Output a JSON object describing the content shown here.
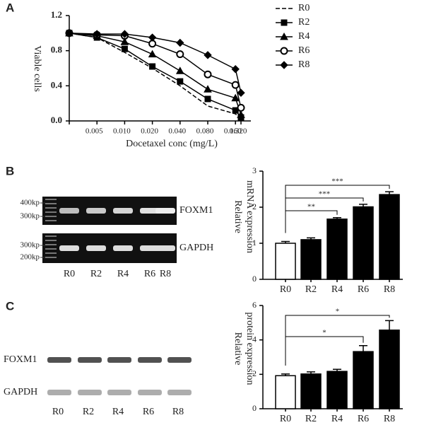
{
  "panel_labels": [
    "A",
    "B",
    "C"
  ],
  "chart_data": [
    {
      "type": "line",
      "xlabel": "Docetaxel conc (mg/L)",
      "ylabel": "Viable cells",
      "categories": [
        null,
        "0.005",
        "0.010",
        "0.020",
        "0.040",
        "0.080",
        "0.160",
        "0.320"
      ],
      "ylim": [
        0,
        1.2
      ],
      "yticks": [
        {
          "value": 0,
          "label": "0.0"
        },
        0.4,
        0.8,
        1.2
      ],
      "series": [
        {
          "name": "R0",
          "color": "#000000",
          "marker": "none",
          "dash": true,
          "values": [
            1.0,
            0.95,
            0.78,
            0.6,
            0.4,
            0.17,
            0.08,
            0.02
          ]
        },
        {
          "name": "R2",
          "color": "#000000",
          "marker": "square",
          "values": [
            1.0,
            0.95,
            0.82,
            0.62,
            0.45,
            0.25,
            0.12,
            0.04
          ]
        },
        {
          "name": "R4",
          "color": "#000000",
          "marker": "triangle",
          "values": [
            1.0,
            0.97,
            0.9,
            0.76,
            0.57,
            0.36,
            0.26,
            0.07
          ]
        },
        {
          "name": "R6",
          "color": "#000000",
          "marker": "circle-open",
          "values": [
            1.0,
            0.98,
            0.97,
            0.88,
            0.76,
            0.53,
            0.41,
            0.15
          ]
        },
        {
          "name": "R8",
          "color": "#000000",
          "marker": "diamond",
          "values": [
            1.0,
            0.99,
            0.99,
            0.95,
            0.89,
            0.75,
            0.59,
            0.32
          ]
        }
      ]
    },
    {
      "type": "bar",
      "ylabel": [
        "Relative",
        "mRNA expression"
      ],
      "categories": [
        "R0",
        "R2",
        "R4",
        "R6",
        "R8"
      ],
      "values": [
        1.0,
        1.1,
        1.67,
        2.01,
        2.35
      ],
      "errors": [
        0.05,
        0.05,
        0.04,
        0.07,
        0.08
      ],
      "colors": [
        "#ffffff",
        "#000000",
        "#000000",
        "#000000",
        "#000000"
      ],
      "ylim": [
        0,
        3
      ],
      "yticks": [
        0,
        1,
        2,
        3
      ],
      "annotations": [
        {
          "from": "R0",
          "to": "R4",
          "text": "**"
        },
        {
          "from": "R0",
          "to": "R6",
          "text": "***"
        },
        {
          "from": "R0",
          "to": "R8",
          "text": "***"
        }
      ]
    },
    {
      "type": "bar",
      "ylabel": [
        "Relative",
        "protein expression"
      ],
      "categories": [
        "R0",
        "R2",
        "R4",
        "R6",
        "R8"
      ],
      "values": [
        1.92,
        2.02,
        2.17,
        3.32,
        4.57
      ],
      "errors": [
        0.1,
        0.12,
        0.12,
        0.35,
        0.55
      ],
      "colors": [
        "#ffffff",
        "#000000",
        "#000000",
        "#000000",
        "#000000"
      ],
      "ylim": [
        0,
        6
      ],
      "yticks": [
        0,
        2,
        4,
        6
      ],
      "annotations": [
        {
          "from": "R0",
          "to": "R6",
          "text": "*"
        },
        {
          "from": "R0",
          "to": "R8",
          "text": "*"
        }
      ]
    }
  ],
  "gel": {
    "markers_top": [
      "400kp",
      "300kp"
    ],
    "markers_bottom": [
      "300kp",
      "200kp"
    ],
    "rows": [
      "FOXM1",
      "GAPDH"
    ],
    "lanes": [
      "R0",
      "R2",
      "R4",
      "R6",
      "R8"
    ]
  },
  "blot": {
    "rows": [
      "FOXM1",
      "GAPDH"
    ],
    "lanes": [
      "R0",
      "R2",
      "R4",
      "R6",
      "R8"
    ]
  }
}
